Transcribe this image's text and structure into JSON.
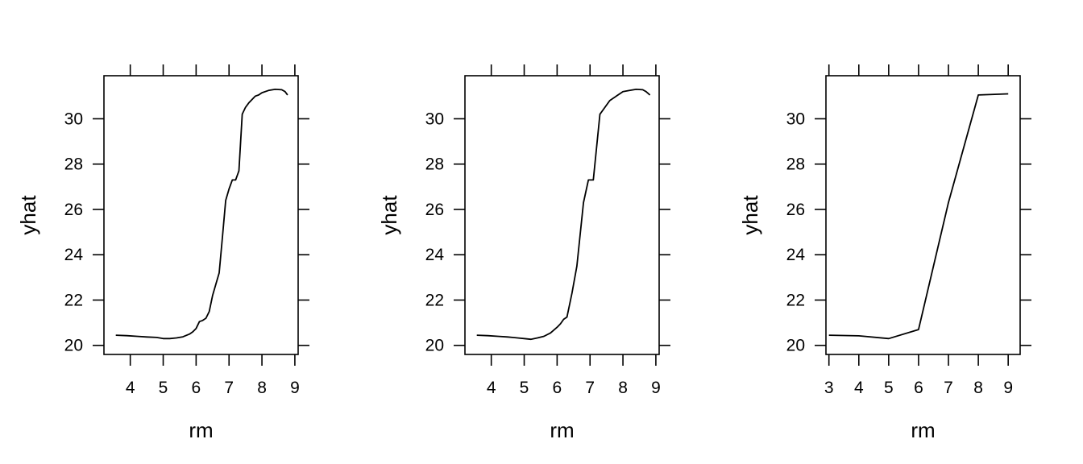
{
  "chart_data": [
    {
      "type": "line",
      "xlabel": "rm",
      "ylabel": "yhat",
      "xlim": [
        3.2,
        9.1
      ],
      "ylim": [
        19.6,
        31.9
      ],
      "xticks": [
        4,
        5,
        6,
        7,
        8,
        9
      ],
      "yticks": [
        20,
        22,
        24,
        26,
        28,
        30
      ],
      "series": [
        {
          "x": [
            3.56,
            3.9,
            4.2,
            4.5,
            4.8,
            5.0,
            5.2,
            5.4,
            5.6,
            5.8,
            5.9,
            6.0,
            6.1,
            6.2,
            6.3,
            6.4,
            6.5,
            6.6,
            6.7,
            6.8,
            6.9,
            7.0,
            7.1,
            7.2,
            7.3,
            7.4,
            7.5,
            7.6,
            7.7,
            7.8,
            7.9,
            8.0,
            8.2,
            8.4,
            8.6,
            8.7,
            8.78
          ],
          "y": [
            20.45,
            20.43,
            20.4,
            20.37,
            20.35,
            20.3,
            20.3,
            20.33,
            20.38,
            20.5,
            20.6,
            20.75,
            21.05,
            21.1,
            21.2,
            21.5,
            22.2,
            22.7,
            23.2,
            24.8,
            26.4,
            26.9,
            27.3,
            27.3,
            27.7,
            30.2,
            30.5,
            30.7,
            30.85,
            31.0,
            31.05,
            31.15,
            31.25,
            31.3,
            31.28,
            31.2,
            31.05
          ]
        }
      ]
    },
    {
      "type": "line",
      "xlabel": "rm",
      "ylabel": "yhat",
      "xlim": [
        3.2,
        9.1
      ],
      "ylim": [
        19.6,
        31.9
      ],
      "xticks": [
        4,
        5,
        6,
        7,
        8,
        9
      ],
      "yticks": [
        20,
        22,
        24,
        26,
        28,
        30
      ],
      "series": [
        {
          "x": [
            3.56,
            3.9,
            4.2,
            4.5,
            4.8,
            5.0,
            5.2,
            5.4,
            5.6,
            5.8,
            6.0,
            6.1,
            6.2,
            6.3,
            6.45,
            6.6,
            6.8,
            6.95,
            7.1,
            7.3,
            7.45,
            7.6,
            7.8,
            8.0,
            8.2,
            8.4,
            8.6,
            8.7,
            8.82
          ],
          "y": [
            20.45,
            20.43,
            20.4,
            20.37,
            20.33,
            20.3,
            20.27,
            20.33,
            20.4,
            20.55,
            20.8,
            20.95,
            21.15,
            21.25,
            22.3,
            23.5,
            26.3,
            27.3,
            27.3,
            30.2,
            30.5,
            30.8,
            31.0,
            31.2,
            31.25,
            31.3,
            31.28,
            31.2,
            31.05
          ]
        }
      ]
    },
    {
      "type": "line",
      "xlabel": "rm",
      "ylabel": "yhat",
      "xlim": [
        2.9,
        9.4
      ],
      "ylim": [
        19.6,
        31.9
      ],
      "xticks": [
        3,
        4,
        5,
        6,
        7,
        8,
        9
      ],
      "yticks": [
        20,
        22,
        24,
        26,
        28,
        30
      ],
      "series": [
        {
          "x": [
            3,
            4,
            5,
            6,
            7,
            8,
            9
          ],
          "y": [
            20.45,
            20.42,
            20.3,
            20.7,
            26.3,
            31.05,
            31.1
          ]
        }
      ]
    }
  ]
}
